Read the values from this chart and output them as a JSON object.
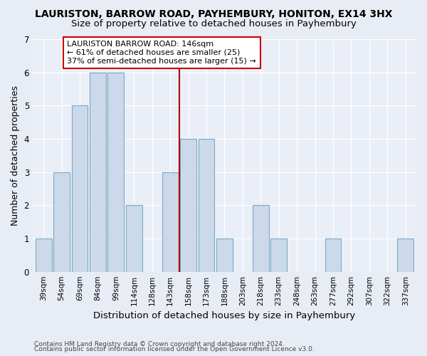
{
  "title": "LAURISTON, BARROW ROAD, PAYHEMBURY, HONITON, EX14 3HX",
  "subtitle": "Size of property relative to detached houses in Payhembury",
  "xlabel": "Distribution of detached houses by size in Payhembury",
  "ylabel": "Number of detached properties",
  "categories": [
    "39sqm",
    "54sqm",
    "69sqm",
    "84sqm",
    "99sqm",
    "114sqm",
    "128sqm",
    "143sqm",
    "158sqm",
    "173sqm",
    "188sqm",
    "203sqm",
    "218sqm",
    "233sqm",
    "248sqm",
    "263sqm",
    "277sqm",
    "292sqm",
    "307sqm",
    "322sqm",
    "337sqm"
  ],
  "values": [
    1,
    3,
    5,
    6,
    6,
    2,
    0,
    3,
    4,
    4,
    1,
    0,
    2,
    1,
    0,
    0,
    1,
    0,
    0,
    0,
    1
  ],
  "bar_color": "#ccd9ea",
  "bar_edge_color": "#7aaac8",
  "reference_line_x": 7.5,
  "reference_line_color": "#aa0000",
  "annotation_text": "LAURISTON BARROW ROAD: 146sqm\n← 61% of detached houses are smaller (25)\n37% of semi-detached houses are larger (15) →",
  "annotation_box_color": "#ffffff",
  "annotation_box_edge_color": "#cc0000",
  "ylim": [
    0,
    7
  ],
  "yticks": [
    0,
    1,
    2,
    3,
    4,
    5,
    6,
    7
  ],
  "footnote1": "Contains HM Land Registry data © Crown copyright and database right 2024.",
  "footnote2": "Contains public sector information licensed under the Open Government Licence v3.0.",
  "bg_color": "#e8edf5",
  "plot_bg_color": "#eaeff7",
  "title_fontsize": 10,
  "subtitle_fontsize": 9.5,
  "axis_label_fontsize": 9,
  "tick_fontsize": 7.5,
  "annotation_fontsize": 8
}
